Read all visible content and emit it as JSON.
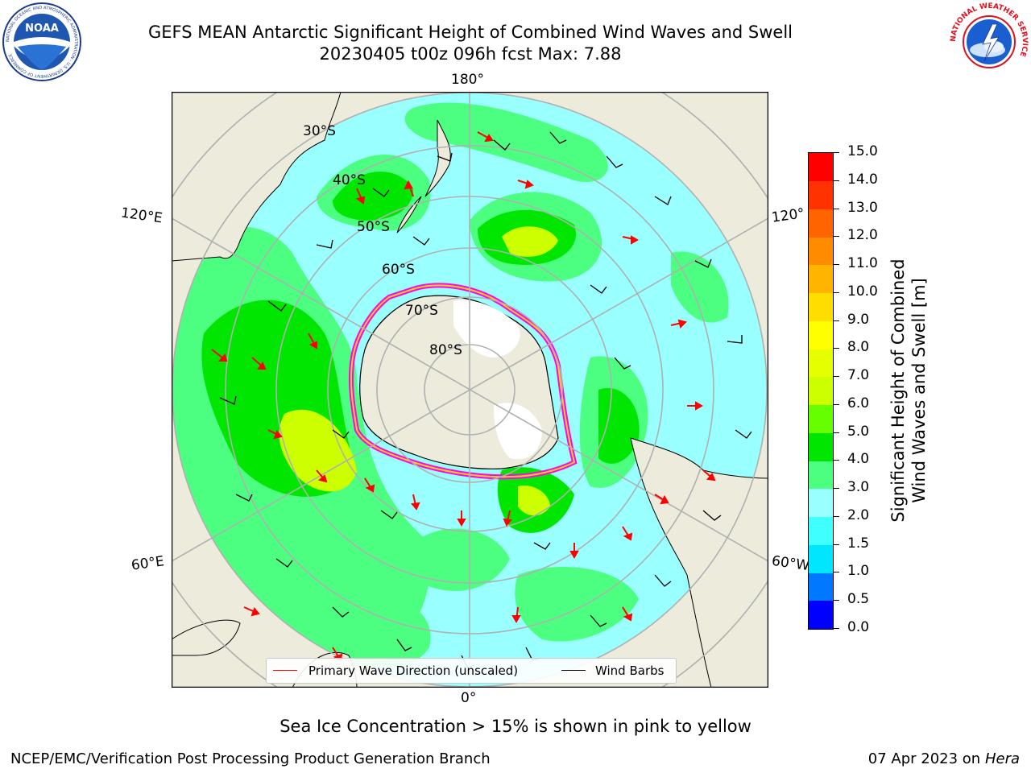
{
  "header": {
    "title_line1": "GEFS MEAN Antarctic Significant Height of Combined Wind Waves and Swell",
    "title_line2": "20230405 t00z 096h fcst   Max: 7.88"
  },
  "logos": {
    "left": "NOAA",
    "left_ring_text": "NATIONAL OCEANIC AND ATMOSPHERIC ADMINISTRATION · U.S. DEPARTMENT OF COMMERCE",
    "right_ring_text": "NATIONAL WEATHER SERVICE"
  },
  "map": {
    "projection": "south-polar-stereographic",
    "lat_labels": [
      "30°S",
      "40°S",
      "50°S",
      "60°S",
      "70°S",
      "80°S"
    ],
    "lon_labels": {
      "top": "180°",
      "bottom": "0°",
      "upper_left": "120°E",
      "lower_left": "60°E",
      "upper_right": "120°",
      "lower_right": "60°W"
    },
    "field_max": 7.88,
    "colors": {
      "land": "#ecebdc",
      "antarctica": "#ffffff",
      "grid": "#b0b0b0",
      "wave_arrow": "#ff0000",
      "wind_barb": "#000000",
      "sea_ice_low": "#ffd700",
      "sea_ice_high": "#ff00ff"
    }
  },
  "colorbar": {
    "ticks": [
      "0.0",
      "0.5",
      "1.0",
      "1.5",
      "2.0",
      "3.0",
      "4.0",
      "5.0",
      "6.0",
      "7.0",
      "8.0",
      "9.0",
      "10.0",
      "11.0",
      "12.0",
      "13.0",
      "14.0",
      "15.0"
    ],
    "colors": [
      "#0000ff",
      "#0078ff",
      "#00e6ff",
      "#40ffff",
      "#99ffff",
      "#4dff80",
      "#00e600",
      "#66ff00",
      "#ccff00",
      "#e6ff00",
      "#ffff00",
      "#ffdd00",
      "#ffb400",
      "#ff8c00",
      "#ff6400",
      "#ff3200",
      "#ff0000"
    ],
    "label_line1": "Significant Height of Combined",
    "label_line2": "Wind Waves and Swell [m]"
  },
  "legend": {
    "wave_label": "Primary Wave Direction (unscaled)",
    "barb_label": "Wind Barbs"
  },
  "note": "Sea Ice Concentration > 15% is shown in pink to yellow",
  "footer": {
    "left": "NCEP/EMC/Verification Post Processing Product Generation Branch",
    "date": "07 Apr 2023 on ",
    "machine": "Hera"
  }
}
